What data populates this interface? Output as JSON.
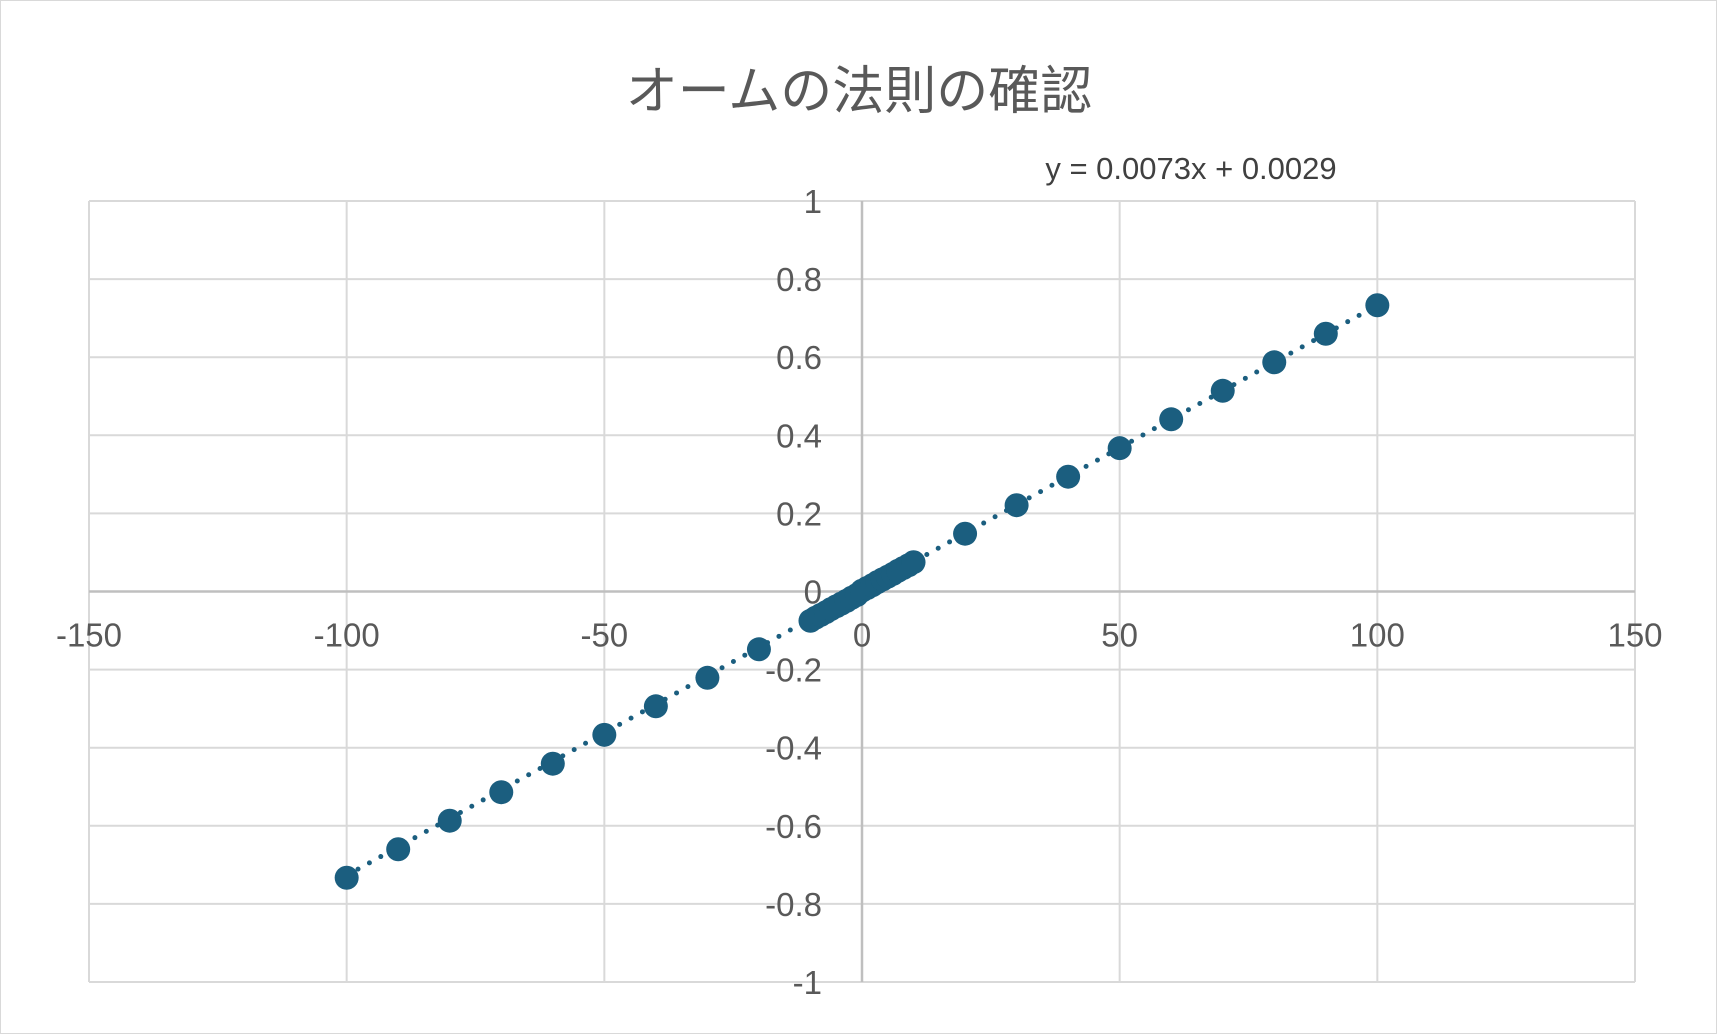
{
  "chart_data": {
    "type": "scatter",
    "title": "オームの法則の確認",
    "xlabel": "",
    "ylabel": "",
    "xlim": [
      -150,
      150
    ],
    "ylim": [
      -1,
      1
    ],
    "x_ticks": [
      -150,
      -100,
      -50,
      0,
      50,
      100,
      150
    ],
    "y_ticks": [
      -1,
      -0.8,
      -0.6,
      -0.4,
      -0.2,
      0,
      0.2,
      0.4,
      0.6,
      0.8,
      1
    ],
    "x_tick_labels": [
      "-150",
      "-100",
      "-50",
      "0",
      "50",
      "100",
      "150"
    ],
    "y_tick_labels": [
      "-1",
      "-0.8",
      "-0.6",
      "-0.4",
      "-0.2",
      "0",
      "0.2",
      "0.4",
      "0.6",
      "0.8",
      "1"
    ],
    "grid": true,
    "series": [
      {
        "x": [
          -100,
          -90,
          -80,
          -70,
          -60,
          -50,
          -40,
          -30,
          -20,
          -10,
          -9,
          -8,
          -7,
          -6,
          -5,
          -4,
          -3,
          -2,
          -1,
          0,
          1,
          2,
          3,
          4,
          5,
          6,
          7,
          8,
          9,
          10,
          20,
          30,
          40,
          50,
          60,
          70,
          80,
          90,
          100
        ],
        "y": [
          -0.733,
          -0.66,
          -0.587,
          -0.514,
          -0.441,
          -0.367,
          -0.294,
          -0.221,
          -0.148,
          -0.075,
          -0.067,
          -0.06,
          -0.053,
          -0.045,
          -0.038,
          -0.031,
          -0.024,
          -0.016,
          -0.009,
          0.002,
          0.009,
          0.016,
          0.024,
          0.031,
          0.038,
          0.045,
          0.053,
          0.06,
          0.067,
          0.075,
          0.148,
          0.221,
          0.294,
          0.367,
          0.441,
          0.514,
          0.587,
          0.66,
          0.733
        ],
        "color": "#1b5e7f"
      }
    ],
    "trendline": {
      "type": "linear",
      "slope": 0.0073,
      "intercept": 0.0029,
      "equation_label": "y = 0.0073x + 0.0029",
      "style": "dotted",
      "color": "#1b5e7f"
    },
    "colors": {
      "gridline": "#d9d9d9",
      "axis": "#bfbfbf",
      "text": "#595959"
    }
  }
}
